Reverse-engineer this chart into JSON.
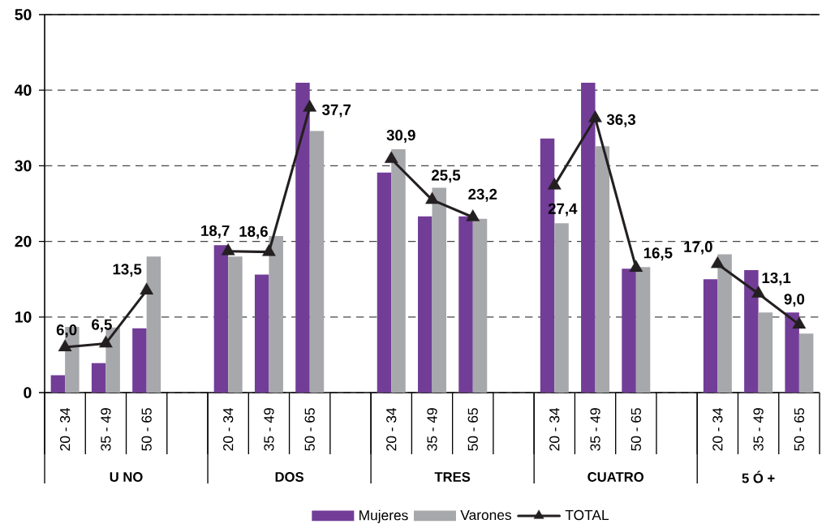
{
  "chart_data": {
    "type": "bar",
    "categories": [
      "20 - 34",
      "35 - 49",
      "50 - 65",
      null,
      "20 - 34",
      "35 - 49",
      "50 - 65",
      null,
      "20 - 34",
      "35 - 49",
      "50 - 65",
      null,
      "20 - 34",
      "35 - 49",
      "50 - 65",
      null,
      "20 - 34",
      "35 - 49",
      "50 - 65"
    ],
    "series": [
      {
        "name": "Mujeres",
        "color": "#723d97",
        "values": [
          2.3,
          3.9,
          8.5,
          null,
          19.5,
          15.6,
          41.0,
          null,
          29.1,
          23.3,
          23.3,
          null,
          33.6,
          41.0,
          16.4,
          null,
          15.0,
          16.2,
          10.6
        ]
      },
      {
        "name": "Varones",
        "color": "#a7a8ab",
        "values": [
          8.7,
          8.6,
          18.0,
          null,
          18.0,
          20.7,
          34.6,
          null,
          32.2,
          27.1,
          23.0,
          null,
          22.4,
          32.6,
          16.6,
          null,
          18.3,
          10.6,
          7.8
        ]
      },
      {
        "name": "TOTAL",
        "type": "line",
        "color": "#231f20",
        "marker": "triangle",
        "values": [
          6.0,
          6.5,
          13.5,
          null,
          18.7,
          18.6,
          37.7,
          null,
          30.9,
          25.5,
          23.2,
          null,
          27.4,
          36.3,
          16.5,
          null,
          17.0,
          13.1,
          9.0
        ],
        "value_labels": [
          "6,0",
          "6,5",
          "13,5",
          null,
          "18,7",
          "18,6",
          "37,7",
          null,
          "30,9",
          "25,5",
          "23,2",
          null,
          "27,4",
          "36,3",
          "16,5",
          null,
          "17,0",
          "13,1",
          "9,0"
        ]
      }
    ],
    "ylim": [
      0,
      50
    ],
    "yticks": [
      0,
      10,
      20,
      30,
      40,
      50
    ],
    "grid": "y",
    "legend": "bottom",
    "annotations": [
      "U NO",
      "DOS",
      "TRES",
      "CUATRO",
      "5 Ó +"
    ]
  }
}
